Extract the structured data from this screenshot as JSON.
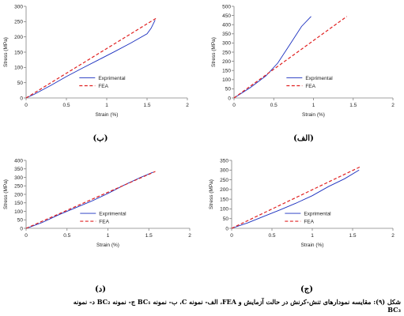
{
  "caption": {
    "line1": "شکل (۹): مقایسه نمودارهای تنش-کرنش در حالت آزمایش و FEA، الف- نمونه C، ب- نمونه BC₁ ج- نمونه BC₂ د- نمونه",
    "line2": "BC₃"
  },
  "colors": {
    "experimental": "#1a2fbf",
    "fea": "#e02020",
    "axis": "#808080"
  },
  "chart_data": [
    {
      "panel_label": "(ب)",
      "type": "line",
      "xlabel": "Strain (%)",
      "ylabel": "Stress (MPa)",
      "xlim": [
        0,
        2
      ],
      "xticks": [
        0,
        0.5,
        1,
        1.5,
        2
      ],
      "xticklabels": [
        "0",
        "0.5",
        "1",
        "1.5",
        "2"
      ],
      "ylim": [
        0,
        300
      ],
      "yticks": [
        0,
        50,
        100,
        150,
        200,
        250,
        300
      ],
      "yticklabels": [
        "0",
        "50",
        "100",
        "150",
        "200",
        "250",
        "300"
      ],
      "legend": "center-right",
      "series": [
        {
          "name": "Exprimental",
          "style": "solid",
          "x": [
            0,
            0.1,
            0.3,
            0.5,
            0.7,
            0.9,
            1.1,
            1.3,
            1.5,
            1.55,
            1.6
          ],
          "y": [
            0,
            12,
            40,
            70,
            98,
            125,
            152,
            180,
            210,
            228,
            255
          ]
        },
        {
          "name": "FEA",
          "style": "dashed",
          "x": [
            0,
            1.62
          ],
          "y": [
            0,
            262
          ]
        }
      ]
    },
    {
      "panel_label": "(الف)",
      "type": "line",
      "xlabel": "Strain (%)",
      "ylabel": "Stress (MPa)",
      "xlim": [
        0,
        2
      ],
      "xticks": [
        0,
        0.5,
        1,
        1.5,
        2
      ],
      "xticklabels": [
        "0",
        "0.5",
        "1",
        "1.5",
        "2"
      ],
      "ylim": [
        0,
        500
      ],
      "yticks": [
        0,
        50,
        100,
        150,
        200,
        250,
        300,
        350,
        400,
        450,
        500
      ],
      "yticklabels": [
        "0",
        "50",
        "100",
        "150",
        "200",
        "250",
        "300",
        "350",
        "400",
        "450",
        "500"
      ],
      "legend": "center-right",
      "series": [
        {
          "name": "Exprimental",
          "style": "solid",
          "x": [
            0,
            0.2,
            0.4,
            0.55,
            0.7,
            0.85,
            0.97
          ],
          "y": [
            0,
            55,
            120,
            190,
            290,
            390,
            445
          ]
        },
        {
          "name": "FEA",
          "style": "dashed",
          "x": [
            0,
            1.42
          ],
          "y": [
            0,
            445
          ]
        }
      ]
    },
    {
      "panel_label": "(د)",
      "type": "line",
      "xlabel": "Strain (%)",
      "ylabel": "Stress (MPa)",
      "xlim": [
        0,
        2
      ],
      "xticks": [
        0,
        0.5,
        1,
        1.5,
        2
      ],
      "xticklabels": [
        "0",
        "0.5",
        "1",
        "1.5",
        "2"
      ],
      "ylim": [
        0,
        400
      ],
      "yticks": [
        0,
        50,
        100,
        150,
        200,
        250,
        300,
        350,
        400
      ],
      "yticklabels": [
        "0",
        "50",
        "100",
        "150",
        "200",
        "250",
        "300",
        "350",
        "400"
      ],
      "legend": "center-right",
      "series": [
        {
          "name": "Exprimental",
          "style": "solid",
          "x": [
            0,
            0.05,
            0.2,
            0.4,
            0.6,
            0.8,
            1.0,
            1.2,
            1.4,
            1.55
          ],
          "y": [
            0,
            8,
            35,
            80,
            120,
            160,
            205,
            255,
            300,
            330
          ]
        },
        {
          "name": "FEA",
          "style": "dashed",
          "x": [
            0,
            1.58
          ],
          "y": [
            0,
            335
          ]
        }
      ]
    },
    {
      "panel_label": "(ج)",
      "type": "line",
      "xlabel": "Strain (%)",
      "ylabel": "Stress (MPa)",
      "xlim": [
        0,
        2
      ],
      "xticks": [
        0,
        0.5,
        1,
        1.5,
        2
      ],
      "xticklabels": [
        "0",
        "0.5",
        "1",
        "1.5",
        "2"
      ],
      "ylim": [
        0,
        350
      ],
      "yticks": [
        0,
        50,
        100,
        150,
        200,
        250,
        300,
        350
      ],
      "yticklabels": [
        "0",
        "50",
        "100",
        "150",
        "200",
        "250",
        "300",
        "350"
      ],
      "legend": "center-right",
      "series": [
        {
          "name": "Exprimental",
          "style": "solid",
          "x": [
            0,
            0.2,
            0.4,
            0.6,
            0.8,
            1.0,
            1.2,
            1.4,
            1.58
          ],
          "y": [
            0,
            28,
            62,
            95,
            130,
            168,
            215,
            255,
            300
          ]
        },
        {
          "name": "FEA",
          "style": "dashed",
          "x": [
            0,
            1.6
          ],
          "y": [
            0,
            318
          ]
        }
      ]
    }
  ]
}
